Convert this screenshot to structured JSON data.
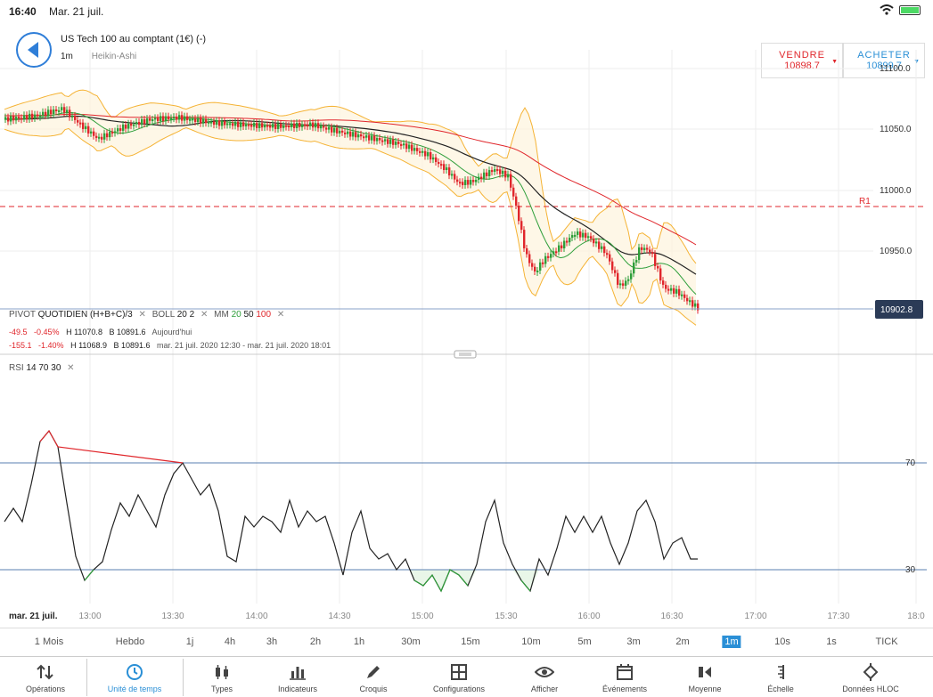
{
  "status": {
    "time": "16:40",
    "date": "Mar. 21 juil."
  },
  "instrument": {
    "title": "US Tech 100 au comptant (1€) (-)",
    "interval": "1m",
    "chart_type": "Heikin-Ashi"
  },
  "sell": {
    "label": "VENDRE",
    "price": "10898.7"
  },
  "buy": {
    "label": "ACHETER",
    "price": "10899.7"
  },
  "price_axis": {
    "ticks": [
      "11100.0",
      "11050.0",
      "11000.0",
      "10950.0"
    ],
    "current_price": "10902.8",
    "r1_label": "R1"
  },
  "indicators": {
    "pivot": {
      "name": "PIVOT",
      "period": "QUOTIDIEN",
      "formula": "(H+B+C)/3"
    },
    "boll": {
      "name": "BOLL",
      "p1": "20",
      "p2": "2"
    },
    "mm": {
      "name": "MM",
      "p1": "20",
      "p2": "50",
      "p3": "100"
    },
    "row1": {
      "change": "-49.5",
      "pct": "-0.45%",
      "high": "H 11070.8",
      "low": "B 10891.6",
      "period": "Aujourd'hui"
    },
    "row2": {
      "change": "-155.1",
      "pct": "-1.40%",
      "high": "H 11068.9",
      "low": "B 10891.6",
      "period": "mar. 21 juil. 2020 12:30 - mar. 21 juil. 2020 18:01"
    },
    "rsi": {
      "name": "RSI",
      "p1": "14",
      "p2": "70",
      "p3": "30",
      "level_high": "70",
      "level_low": "30"
    }
  },
  "time_axis": {
    "date_label": "mar. 21 juil.",
    "ticks": [
      "13:00",
      "13:30",
      "14:00",
      "14:30",
      "15:00",
      "15:30",
      "16:00",
      "16:30",
      "17:00",
      "17:30",
      "18:0"
    ]
  },
  "timeframes": [
    "1 Mois",
    "Hebdo",
    "1j",
    "4h",
    "3h",
    "2h",
    "1h",
    "30m",
    "15m",
    "10m",
    "5m",
    "3m",
    "2m",
    "1m",
    "10s",
    "1s",
    "TICK"
  ],
  "active_timeframe": "1m",
  "toolbar": [
    {
      "label": "Opérations",
      "icon": "arrows-updown-icon"
    },
    {
      "label": "Unité de temps",
      "icon": "clock-icon"
    },
    {
      "label": "Types",
      "icon": "candles-icon"
    },
    {
      "label": "Indicateurs",
      "icon": "bars-icon"
    },
    {
      "label": "Croquis",
      "icon": "pencil-icon"
    },
    {
      "label": "Configurations",
      "icon": "layout-icon"
    },
    {
      "label": "Afficher",
      "icon": "eye-icon"
    },
    {
      "label": "Événements",
      "icon": "calendar-icon"
    },
    {
      "label": "Moyenne",
      "icon": "marker-icon"
    },
    {
      "label": "Échelle",
      "icon": "scale-icon"
    },
    {
      "label": "Données HLOC",
      "icon": "crosshair-icon"
    }
  ],
  "colors": {
    "accent": "#2a8fd6",
    "sell": "#e0262b",
    "up": "#2e9e3a",
    "down": "#e0262b",
    "boll": "#f5b335",
    "mm100": "#e0262b",
    "mm50": "#222222",
    "mm20": "#2e9e3a"
  }
}
